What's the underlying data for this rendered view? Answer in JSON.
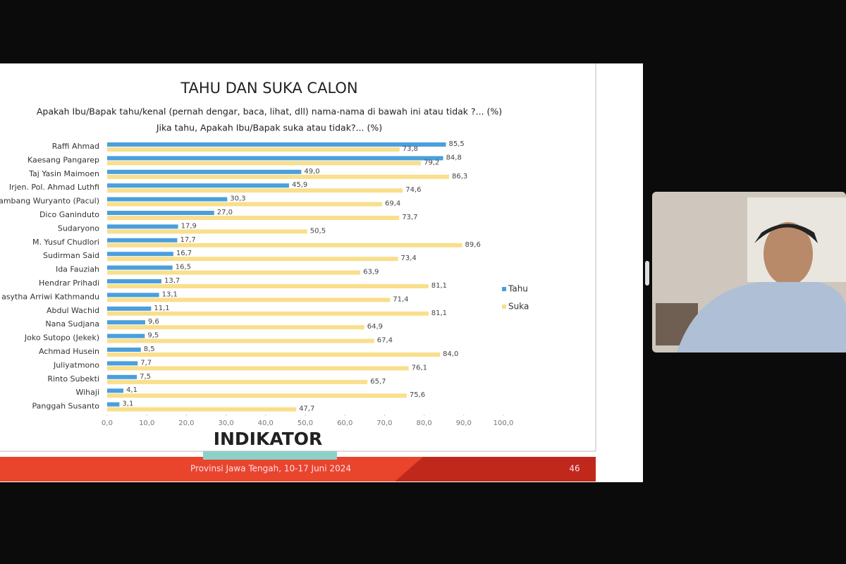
{
  "chart_data": {
    "type": "bar",
    "orientation": "horizontal",
    "title": "TAHU DAN SUKA CALON",
    "subtitle": [
      "Apakah Ibu/Bapak tahu/kenal (pernah dengar, baca, lihat, dll) nama-nama di bawah ini atau tidak ?... (%)",
      "Jika tahu, Apakah Ibu/Bapak suka atau tidak?... (%)"
    ],
    "categories": [
      "Raffi Ahmad",
      "Kaesang Pangarep",
      "Taj Yasin Maimoen",
      "Irjen. Pol. Ahmad Luthfi",
      "ambang Wuryanto (Pacul)",
      "Dico Ganinduto",
      "Sudaryono",
      "M. Yusuf Chudlori",
      "Sudirman Said",
      "Ida Fauziah",
      "Hendrar Prihadi",
      "asytha Arriwi Kathmandu",
      "Abdul Wachid",
      "Nana Sudjana",
      "Joko Sutopo (Jekek)",
      "Achmad Husein",
      "Juliyatmono",
      "Rinto Subekti",
      "Wihaji",
      "Panggah Susanto"
    ],
    "series": [
      {
        "name": "Tahu",
        "color": "#4a9fdc",
        "values": [
          85.5,
          84.8,
          49.0,
          45.9,
          30.3,
          27.0,
          17.9,
          17.7,
          16.7,
          16.5,
          13.7,
          13.1,
          11.1,
          9.6,
          9.5,
          8.5,
          7.7,
          7.5,
          4.1,
          3.1
        ],
        "value_labels": [
          "85,5",
          "84,8",
          "49,0",
          "45,9",
          "30,3",
          "27,0",
          "17,9",
          "17,7",
          "16,7",
          "16,5",
          "13,7",
          "13,1",
          "11,1",
          "9,6",
          "9,5",
          "8,5",
          "7,7",
          "7,5",
          "4,1",
          "3,1"
        ]
      },
      {
        "name": "Suka",
        "color": "#f9df8c",
        "values": [
          73.8,
          79.2,
          86.3,
          74.6,
          69.4,
          73.7,
          50.5,
          89.6,
          73.4,
          63.9,
          81.1,
          71.4,
          81.1,
          64.9,
          67.4,
          84.0,
          76.1,
          65.7,
          75.6,
          47.7
        ],
        "value_labels": [
          "73,8",
          "79,2",
          "86,3",
          "74,6",
          "69,4",
          "73,7",
          "50,5",
          "89,6",
          "73,4",
          "63,9",
          "81,1",
          "71,4",
          "81,1",
          "64,9",
          "67,4",
          "84,0",
          "76,1",
          "65,7",
          "75,6",
          "47,7"
        ]
      }
    ],
    "xlim": [
      0,
      100
    ],
    "xticks": [
      {
        "value": 0,
        "label": "0,0"
      },
      {
        "value": 10,
        "label": "10,0"
      },
      {
        "value": 20,
        "label": "20,0"
      },
      {
        "value": 30,
        "label": "30,0"
      },
      {
        "value": 40,
        "label": "40,0"
      },
      {
        "value": 50,
        "label": "50,0"
      },
      {
        "value": 60,
        "label": "60,0"
      },
      {
        "value": 70,
        "label": "70,0"
      },
      {
        "value": 80,
        "label": "80,0"
      },
      {
        "value": 90,
        "label": "90,0"
      },
      {
        "value": 100,
        "label": "100,0"
      }
    ],
    "legend": "right"
  },
  "slide": {
    "logo": "INDIKATOR",
    "footer": "Provinsi Jawa Tengah, 10-17 Juni 2024",
    "page_number": "46"
  }
}
